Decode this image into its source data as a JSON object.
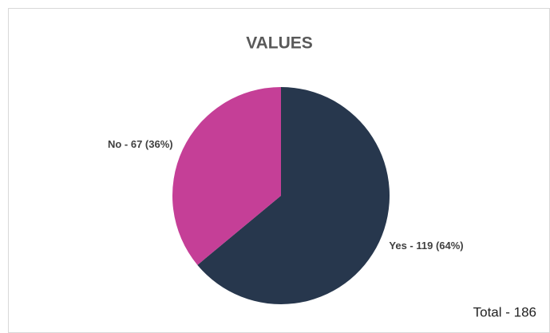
{
  "chart_data": {
    "type": "pie",
    "title": "VALUES",
    "values": [
      119,
      67
    ],
    "value_labels": [
      "Yes - 119 (64%)",
      "No - 67 (36%)"
    ],
    "colors": [
      "#27374d",
      "#c53f97"
    ],
    "annotation": "Total - 186"
  }
}
